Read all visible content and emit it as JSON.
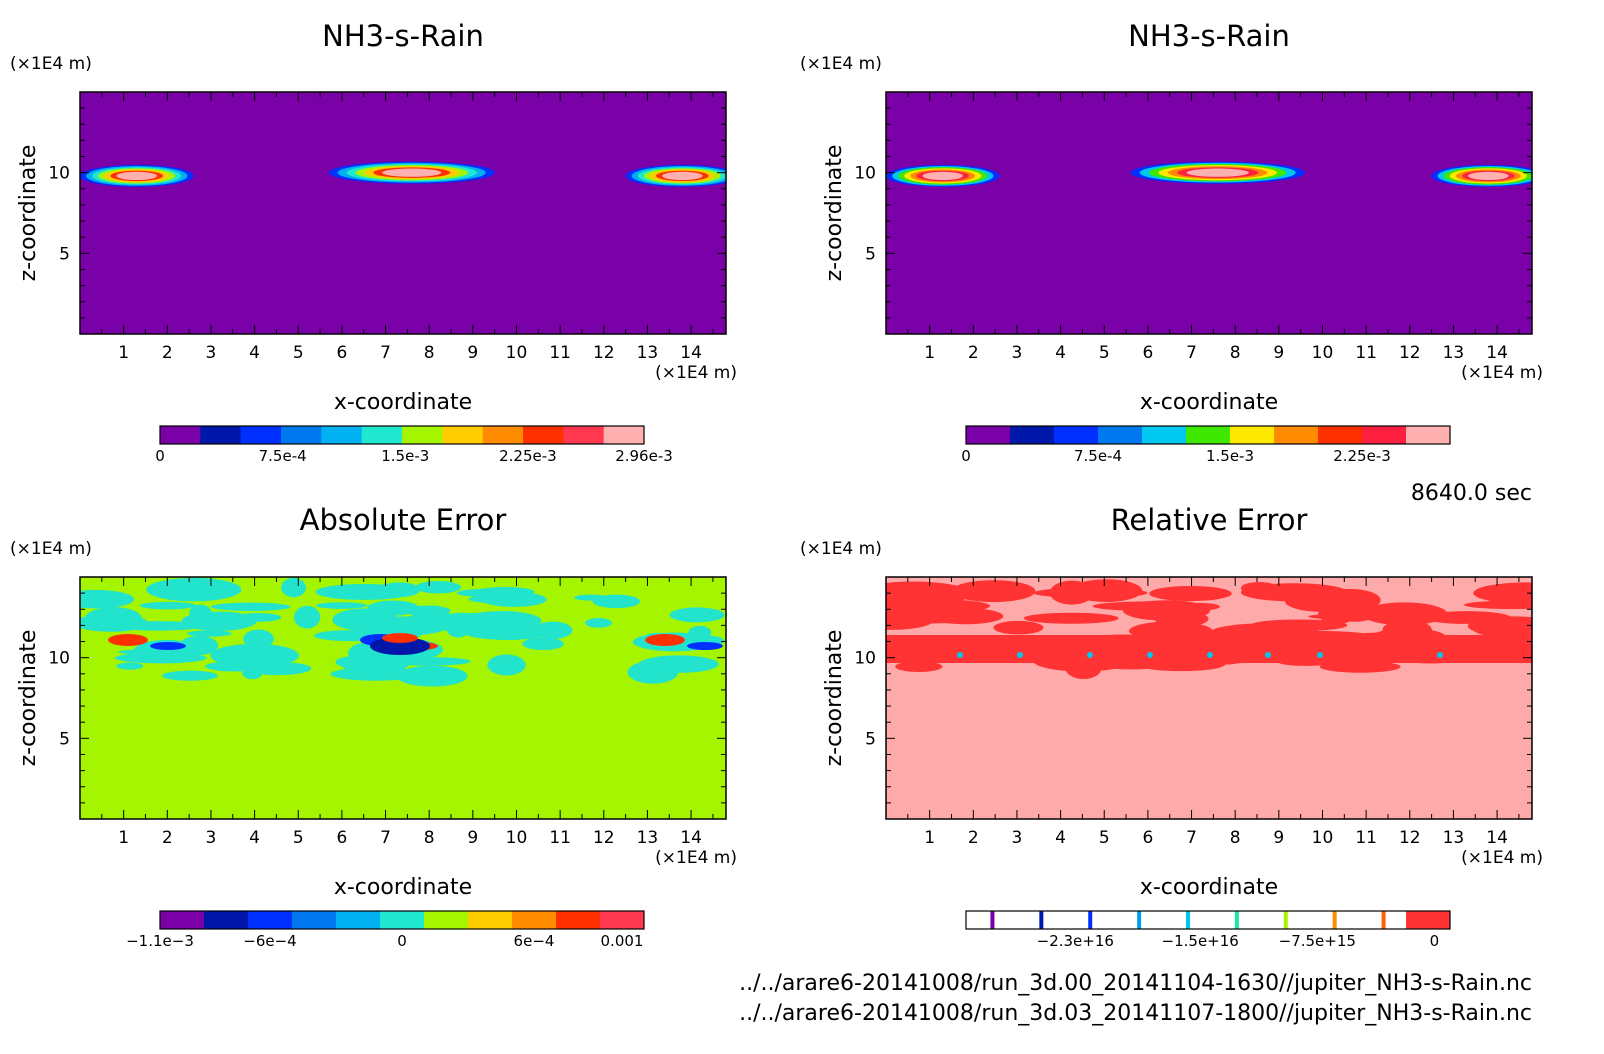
{
  "time_label": "8640.0 sec",
  "files": [
    "../../arare6-20141008/run_3d.00_20141104-1630//jupiter_NH3-s-Rain.nc",
    "../../arare6-20141008/run_3d.03_20141107-1800//jupiter_NH3-s-Rain.nc"
  ],
  "colors": {
    "background_nh3": "#7a00a8",
    "background_abs": "#a6f500",
    "background_rel": "#ffaaaa",
    "rel_structure": "#ff3333",
    "abs_structure": "#22e4cc"
  },
  "chart_data": [
    {
      "type": "heatmap",
      "title": "NH3-s-Rain",
      "xlabel": "x-coordinate",
      "ylabel": "z-coordinate",
      "x_unit": "(×1E4 m)",
      "z_unit": "(×1E4 m)",
      "x_ticks": [
        "1",
        "2",
        "3",
        "4",
        "5",
        "6",
        "7",
        "8",
        "9",
        "10",
        "11",
        "12",
        "13",
        "14"
      ],
      "z_ticks": [
        "5",
        "10"
      ],
      "xlim": [
        0,
        14.8
      ],
      "zlim": [
        0,
        15
      ],
      "colorbar": {
        "colors": [
          "#7a00a8",
          "#0018aa",
          "#0030ff",
          "#0078f0",
          "#00b0f0",
          "#20e8d0",
          "#a6f500",
          "#ffcc00",
          "#ff8c00",
          "#ff3000",
          "#ff3850",
          "#ffb0b0"
        ],
        "labels": [
          "0",
          "7.5e-4",
          "1.5e-3",
          "2.25e-3",
          "2.96e-3"
        ],
        "label_values": [
          0,
          0.00075,
          0.0015,
          0.00225,
          0.00296
        ],
        "vmin": 0,
        "vmax": 0.00296
      },
      "features": [
        {
          "x_center": 1.3,
          "z_center": 9.8,
          "half_width": 1.3,
          "peak": 0.00296
        },
        {
          "x_center": 7.6,
          "z_center": 10.0,
          "half_width": 1.9,
          "peak": 0.00296
        },
        {
          "x_center": 13.8,
          "z_center": 9.8,
          "half_width": 1.3,
          "peak": 0.00296
        }
      ]
    },
    {
      "type": "heatmap",
      "title": "NH3-s-Rain",
      "xlabel": "x-coordinate",
      "ylabel": "z-coordinate",
      "x_unit": "(×1E4 m)",
      "z_unit": "(×1E4 m)",
      "x_ticks": [
        "1",
        "2",
        "3",
        "4",
        "5",
        "6",
        "7",
        "8",
        "9",
        "10",
        "11",
        "12",
        "13",
        "14"
      ],
      "z_ticks": [
        "5",
        "10"
      ],
      "xlim": [
        0,
        14.8
      ],
      "zlim": [
        0,
        15
      ],
      "colorbar": {
        "colors": [
          "#7a00a8",
          "#0018aa",
          "#0030ff",
          "#0078f0",
          "#00c8f0",
          "#40e800",
          "#ffe800",
          "#ff8c00",
          "#ff3000",
          "#ff2040",
          "#ffb0b0"
        ],
        "labels": [
          "0",
          "7.5e-4",
          "1.5e-3",
          "2.25e-3"
        ],
        "label_values": [
          0,
          0.00075,
          0.0015,
          0.00225
        ],
        "vmin": 0,
        "vmax": 0.00275
      },
      "features": [
        {
          "x_center": 1.3,
          "z_center": 9.8,
          "half_width": 1.3,
          "peak": 0.00275
        },
        {
          "x_center": 7.6,
          "z_center": 10.0,
          "half_width": 2.0,
          "peak": 0.00275
        },
        {
          "x_center": 13.8,
          "z_center": 9.8,
          "half_width": 1.3,
          "peak": 0.00275
        }
      ]
    },
    {
      "type": "heatmap",
      "title": "Absolute Error",
      "xlabel": "x-coordinate",
      "ylabel": "z-coordinate",
      "x_unit": "(×1E4 m)",
      "z_unit": "(×1E4 m)",
      "x_ticks": [
        "1",
        "2",
        "3",
        "4",
        "5",
        "6",
        "7",
        "8",
        "9",
        "10",
        "11",
        "12",
        "13",
        "14"
      ],
      "z_ticks": [
        "5",
        "10"
      ],
      "xlim": [
        0,
        14.8
      ],
      "zlim": [
        0,
        15
      ],
      "colorbar": {
        "colors": [
          "#7a00a8",
          "#0018aa",
          "#0030ff",
          "#0078f0",
          "#00b0f0",
          "#20e8d0",
          "#a6f500",
          "#ffcc00",
          "#ff8c00",
          "#ff3000",
          "#ff3850"
        ],
        "labels": [
          "−1.1e−3",
          "−6e−4",
          "0",
          "6e−4",
          "0.001"
        ],
        "label_values": [
          -0.0011,
          -0.0006,
          0,
          0.0006,
          0.001
        ],
        "vmin": -0.0011,
        "vmax": 0.0011
      }
    },
    {
      "type": "heatmap",
      "title": "Relative Error",
      "xlabel": "x-coordinate",
      "ylabel": "z-coordinate",
      "x_unit": "(×1E4 m)",
      "z_unit": "(×1E4 m)",
      "x_ticks": [
        "1",
        "2",
        "3",
        "4",
        "5",
        "6",
        "7",
        "8",
        "9",
        "10",
        "11",
        "12",
        "13",
        "14"
      ],
      "z_ticks": [
        "5",
        "10"
      ],
      "xlim": [
        0,
        14.8
      ],
      "zlim": [
        0,
        15
      ],
      "colorbar": {
        "colors": [
          "#ffffff",
          "#ffffff",
          "#ffffff",
          "#ffffff",
          "#ffffff",
          "#ffffff",
          "#ffffff",
          "#ffffff",
          "#ffffff",
          "#ffffff",
          "#ff3333"
        ],
        "line_colors": [
          "#7a00a8",
          "#0018aa",
          "#0030ff",
          "#00a0f0",
          "#00c8f0",
          "#20e8a0",
          "#a6f500",
          "#ff8c00",
          "#ff6000"
        ],
        "labels": [
          "−2.3e+16",
          "−1.5e+16",
          "−7.5e+15",
          "0"
        ],
        "label_values": [
          -2.3e+16,
          -1.5e+16,
          -7500000000000000.0,
          0
        ],
        "vmin": -3e+16,
        "vmax": 1000000000000000.0
      }
    }
  ]
}
